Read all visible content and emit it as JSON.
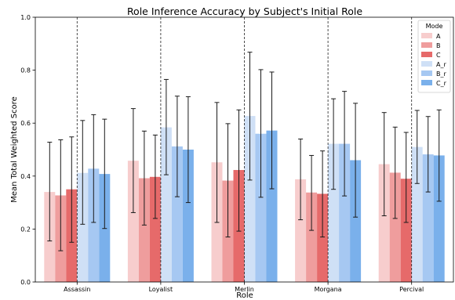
{
  "chart_data": {
    "type": "bar",
    "title": "Role Inference Accuracy by Subject's Initial Role",
    "xlabel": "Role",
    "ylabel": "Mean Total Weighted Score",
    "ylim": [
      0,
      1.0
    ],
    "yticks": [
      "0.0",
      "0.2",
      "0.4",
      "0.6",
      "0.8",
      "1.0"
    ],
    "grid": false,
    "legend_position": "top-right",
    "legend_title": "Mode",
    "separators": "dashed vertical lines at category centers",
    "categories": [
      "Assassin",
      "Loyalist",
      "Merlin",
      "Morgana",
      "Percival"
    ],
    "series": [
      {
        "name": "A",
        "color": "#f7cdcd",
        "values": [
          0.34,
          0.458,
          0.452,
          0.388,
          0.445
        ],
        "err_low": [
          0.155,
          0.262,
          0.225,
          0.235,
          0.25
        ],
        "err_high": [
          0.528,
          0.655,
          0.678,
          0.54,
          0.64
        ]
      },
      {
        "name": "B",
        "color": "#ef9d9d",
        "values": [
          0.327,
          0.392,
          0.383,
          0.338,
          0.413
        ],
        "err_low": [
          0.118,
          0.215,
          0.17,
          0.195,
          0.24
        ],
        "err_high": [
          0.537,
          0.57,
          0.598,
          0.478,
          0.585
        ]
      },
      {
        "name": "C",
        "color": "#e66a6a",
        "values": [
          0.35,
          0.397,
          0.423,
          0.333,
          0.39
        ],
        "err_low": [
          0.15,
          0.24,
          0.192,
          0.17,
          0.225
        ],
        "err_high": [
          0.548,
          0.555,
          0.65,
          0.495,
          0.565
        ]
      },
      {
        "name": "A_r",
        "color": "#cfe0f6",
        "values": [
          0.412,
          0.584,
          0.627,
          0.522,
          0.51
        ],
        "err_low": [
          0.218,
          0.405,
          0.385,
          0.35,
          0.372
        ],
        "err_high": [
          0.61,
          0.765,
          0.868,
          0.692,
          0.648
        ]
      },
      {
        "name": "B_r",
        "color": "#a6c8f2",
        "values": [
          0.428,
          0.512,
          0.56,
          0.522,
          0.482
        ],
        "err_low": [
          0.225,
          0.322,
          0.32,
          0.325,
          0.34
        ],
        "err_high": [
          0.632,
          0.702,
          0.802,
          0.72,
          0.625
        ]
      },
      {
        "name": "C_r",
        "color": "#7ab0eb",
        "values": [
          0.408,
          0.5,
          0.572,
          0.46,
          0.478
        ],
        "err_low": [
          0.202,
          0.3,
          0.352,
          0.245,
          0.305
        ],
        "err_high": [
          0.615,
          0.7,
          0.793,
          0.675,
          0.65
        ]
      }
    ]
  }
}
